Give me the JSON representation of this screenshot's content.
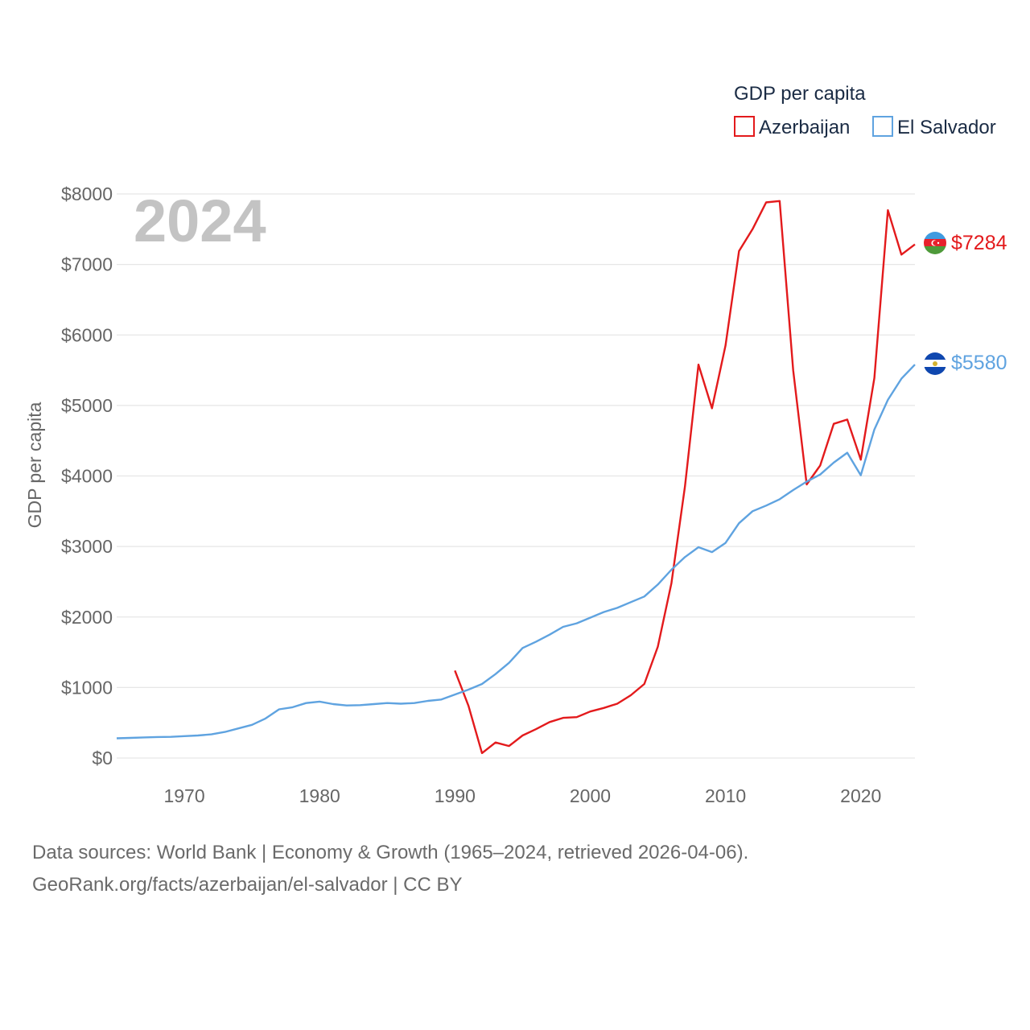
{
  "chart_data": {
    "type": "line",
    "ylabel": "GDP per capita",
    "xlabel": "",
    "xlim": [
      1965,
      2024
    ],
    "ylim": [
      0,
      8000
    ],
    "x_ticks": [
      1970,
      1980,
      1990,
      2000,
      2010,
      2020
    ],
    "x_tick_labels": [
      "1970",
      "1980",
      "1990",
      "2000",
      "2010",
      "2020"
    ],
    "y_ticks": [
      0,
      1000,
      2000,
      3000,
      4000,
      5000,
      6000,
      7000,
      8000
    ],
    "y_tick_labels": [
      "$0",
      "$1000",
      "$2000",
      "$3000",
      "$4000",
      "$5000",
      "$6000",
      "$7000",
      "$8000"
    ],
    "grid": true,
    "current_year_label": "2024",
    "legend": {
      "title": "GDP per capita",
      "position": "top-right",
      "entries": [
        "Azerbaijan",
        "El Salvador"
      ]
    },
    "series": [
      {
        "name": "Azerbaijan",
        "color": "#e31a1c",
        "end_label": "$7284",
        "x": [
          1990,
          1991,
          1992,
          1993,
          1994,
          1995,
          1996,
          1997,
          1998,
          1999,
          2000,
          2001,
          2002,
          2003,
          2004,
          2005,
          2006,
          2007,
          2008,
          2009,
          2010,
          2011,
          2012,
          2013,
          2014,
          2015,
          2016,
          2017,
          2018,
          2019,
          2020,
          2021,
          2022,
          2023,
          2024
        ],
        "values": [
          1240,
          740,
          70,
          220,
          170,
          320,
          410,
          510,
          570,
          580,
          660,
          710,
          770,
          890,
          1050,
          1580,
          2480,
          3850,
          5580,
          4960,
          5850,
          7190,
          7500,
          7880,
          7900,
          5500,
          3880,
          4150,
          4740,
          4800,
          4230,
          5390,
          7770,
          7140,
          7284
        ]
      },
      {
        "name": "El Salvador",
        "color": "#5fa3e0",
        "end_label": "$5580",
        "x": [
          1965,
          1966,
          1967,
          1968,
          1969,
          1970,
          1971,
          1972,
          1973,
          1974,
          1975,
          1976,
          1977,
          1978,
          1979,
          1980,
          1981,
          1982,
          1983,
          1984,
          1985,
          1986,
          1987,
          1988,
          1989,
          1990,
          1991,
          1992,
          1993,
          1994,
          1995,
          1996,
          1997,
          1998,
          1999,
          2000,
          2001,
          2002,
          2003,
          2004,
          2005,
          2006,
          2007,
          2008,
          2009,
          2010,
          2011,
          2012,
          2013,
          2014,
          2015,
          2016,
          2017,
          2018,
          2019,
          2020,
          2021,
          2022,
          2023,
          2024
        ],
        "values": [
          280,
          285,
          292,
          298,
          300,
          310,
          320,
          335,
          370,
          420,
          470,
          560,
          690,
          720,
          780,
          800,
          765,
          745,
          750,
          765,
          780,
          770,
          780,
          810,
          830,
          900,
          970,
          1050,
          1190,
          1350,
          1560,
          1650,
          1750,
          1860,
          1910,
          1990,
          2070,
          2130,
          2210,
          2290,
          2460,
          2670,
          2850,
          2990,
          2920,
          3050,
          3330,
          3500,
          3580,
          3670,
          3800,
          3920,
          4020,
          4190,
          4330,
          4010,
          4660,
          5080,
          5380,
          5580
        ]
      }
    ]
  },
  "footer": {
    "line1": "Data sources: World Bank | Economy & Growth (1965–2024, retrieved 2026-04-06).",
    "line2": "GeoRank.org/facts/azerbaijan/el-salvador | CC BY"
  },
  "icons": {
    "azerbaijan_flag": "azerbaijan-flag-icon",
    "el_salvador_flag": "el-salvador-flag-icon"
  }
}
